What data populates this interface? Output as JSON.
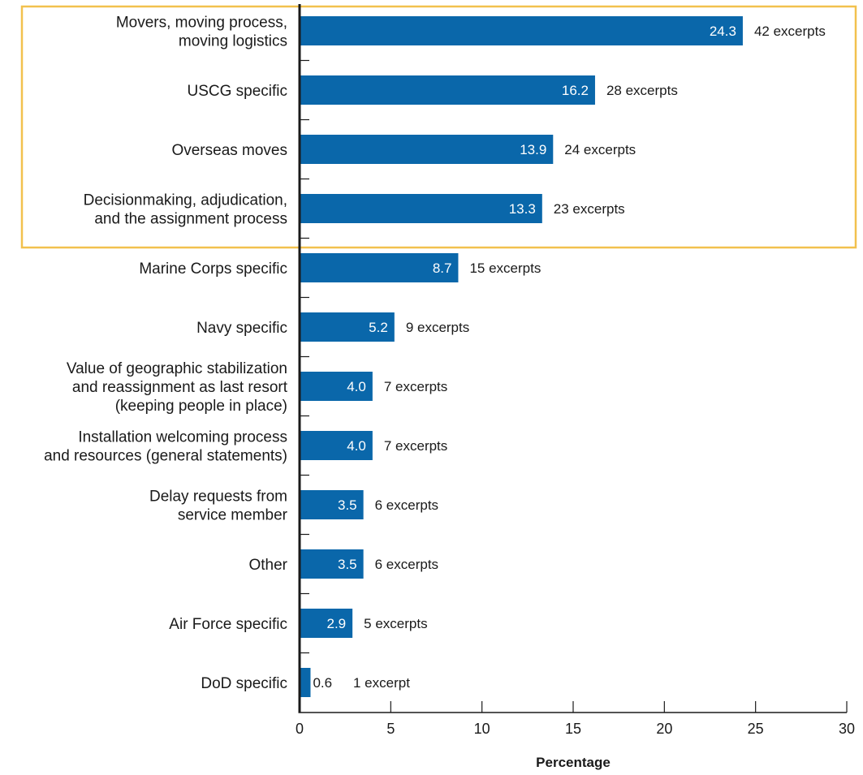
{
  "chart_data": {
    "type": "bar",
    "orientation": "horizontal",
    "xlabel": "Percentage",
    "xlim": [
      0,
      30
    ],
    "xticks": [
      "0",
      "5",
      "10",
      "15",
      "20",
      "25",
      "30"
    ],
    "grid": false,
    "bar_color": "#0a67aa",
    "highlight_color": "#f2c14e",
    "highlighted_categories": 4,
    "categories": [
      [
        "Movers, moving process,",
        "moving logistics"
      ],
      [
        "USCG specific"
      ],
      [
        "Overseas moves"
      ],
      [
        "Decisionmaking, adjudication,",
        "and the assignment process"
      ],
      [
        "Marine Corps specific"
      ],
      [
        "Navy specific"
      ],
      [
        "Value of geographic stabilization",
        "and reassignment as last resort",
        "(keeping people in place)"
      ],
      [
        "Installation welcoming process",
        "and resources (general statements)"
      ],
      [
        "Delay requests from",
        "service member"
      ],
      [
        "Other"
      ],
      [
        "Air Force specific"
      ],
      [
        "DoD specific"
      ]
    ],
    "values": [
      24.3,
      16.2,
      13.9,
      13.3,
      8.7,
      5.2,
      4.0,
      4.0,
      3.5,
      3.5,
      2.9,
      0.6
    ],
    "value_labels": [
      "24.3",
      "16.2",
      "13.9",
      "13.3",
      "8.7",
      "5.2",
      "4.0",
      "4.0",
      "3.5",
      "3.5",
      "2.9",
      "0.6"
    ],
    "excerpt_labels": [
      "42 excerpts",
      "28 excerpts",
      "24 excerpts",
      "23 excerpts",
      "15 excerpts",
      "9 excerpts",
      "7 excerpts",
      "7 excerpts",
      "6 excerpts",
      "6 excerpts",
      "5 excerpts",
      "1 excerpt"
    ]
  }
}
